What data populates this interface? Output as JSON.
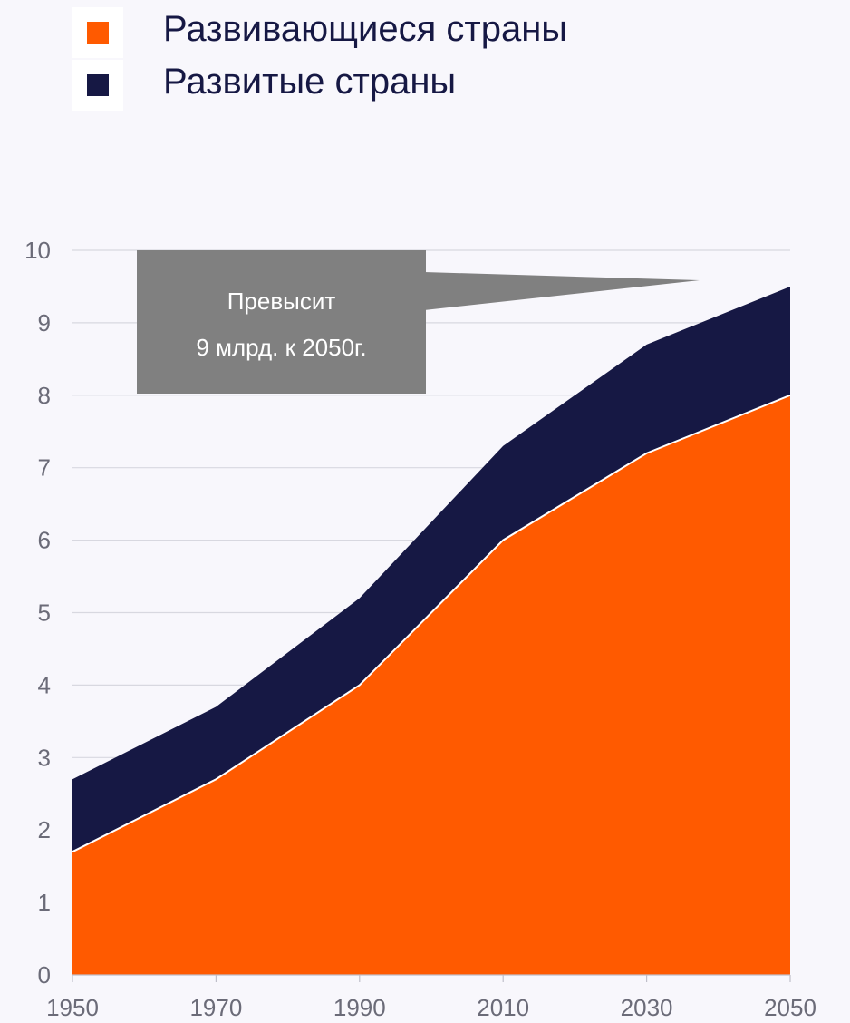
{
  "legend": {
    "items": [
      {
        "label": "Развивающиеся страны",
        "color": "#ff5a00"
      },
      {
        "label": "Развитые страны",
        "color": "#161844"
      }
    ]
  },
  "callout": {
    "line1": "Превысит",
    "line2": "9 млрд. к 2050г.",
    "color": "#808080"
  },
  "chart_data": {
    "type": "area",
    "stacked": true,
    "x": [
      1950,
      1970,
      1990,
      2010,
      2030,
      2050
    ],
    "series": [
      {
        "name": "Развивающиеся страны",
        "values": [
          1.7,
          2.7,
          4.0,
          6.0,
          7.2,
          8.0
        ],
        "color": "#ff5a00"
      },
      {
        "name": "Развитые страны",
        "values": [
          1.0,
          1.0,
          1.2,
          1.3,
          1.5,
          1.5
        ],
        "color": "#161844"
      }
    ],
    "xlabel": "",
    "ylabel": "",
    "xticks": [
      "1950",
      "1970",
      "1990",
      "2010",
      "2030",
      "2050"
    ],
    "yticks": [
      "0",
      "1",
      "2",
      "3",
      "4",
      "5",
      "6",
      "7",
      "8",
      "9",
      "10"
    ],
    "xlim": [
      1950,
      2050
    ],
    "ylim": [
      0,
      10
    ],
    "grid": true,
    "legend_position": "top-left"
  }
}
